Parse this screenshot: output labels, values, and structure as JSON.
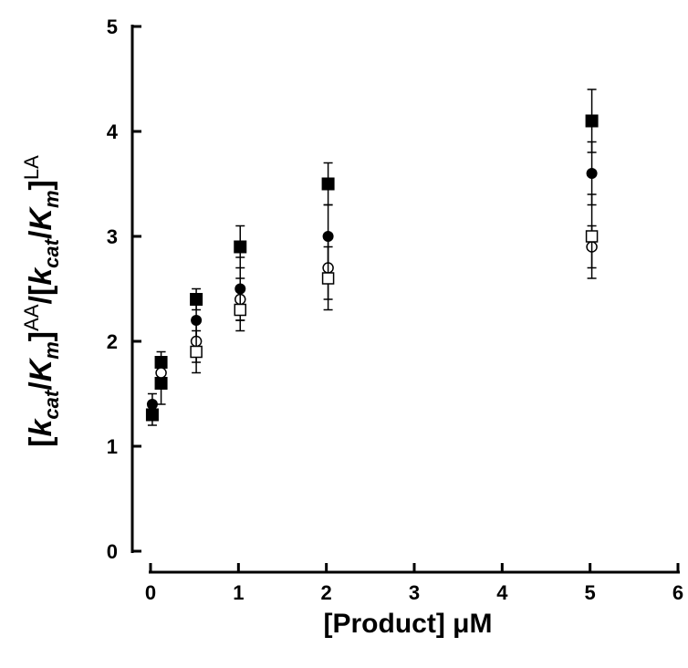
{
  "chart_data": {
    "type": "scatter",
    "title": "",
    "xlabel": "[Product] μM",
    "ylabel": {
      "open_bracket": "[",
      "k1": "k",
      "cat1": "cat",
      "slash1": "/",
      "K1": "K",
      "m1": "m",
      "close1": "]",
      "sup1": "AA",
      "slash_mid": "/[",
      "k2": "k",
      "cat2": "cat",
      "slash2": "/",
      "K2": "K",
      "m2": "m",
      "close2": "]",
      "sup2": "LA"
    },
    "xlim": [
      0,
      6
    ],
    "ylim": [
      0,
      5
    ],
    "x_ticks": [
      0,
      1,
      2,
      3,
      4,
      5,
      6
    ],
    "y_ticks": [
      0,
      1,
      2,
      3,
      4,
      5
    ],
    "grid": false,
    "legend": "none",
    "series": [
      {
        "marker": "filled-square",
        "points": [
          {
            "x": 0.02,
            "y": 1.3,
            "err": 0.1
          },
          {
            "x": 0.12,
            "y": 1.6,
            "err": 0.2
          },
          {
            "x": 0.12,
            "y": 1.8,
            "err": 0.1
          },
          {
            "x": 0.52,
            "y": 2.4,
            "err": 0.1
          },
          {
            "x": 1.02,
            "y": 2.9,
            "err": 0.2
          },
          {
            "x": 2.02,
            "y": 3.5,
            "err": 0.2
          },
          {
            "x": 5.02,
            "y": 4.1,
            "err": 0.3
          }
        ]
      },
      {
        "marker": "filled-circle",
        "points": [
          {
            "x": 0.02,
            "y": 1.4,
            "err": 0.1
          },
          {
            "x": 0.52,
            "y": 2.2,
            "err": 0.2
          },
          {
            "x": 1.02,
            "y": 2.5,
            "err": 0.3
          },
          {
            "x": 2.02,
            "y": 3.0,
            "err": 0.3
          },
          {
            "x": 5.02,
            "y": 3.6,
            "err": 0.3
          }
        ]
      },
      {
        "marker": "open-circle",
        "points": [
          {
            "x": 0.12,
            "y": 1.7,
            "err": 0.1
          },
          {
            "x": 0.52,
            "y": 2.0,
            "err": 0.2
          },
          {
            "x": 1.02,
            "y": 2.4,
            "err": 0.2
          },
          {
            "x": 2.02,
            "y": 2.7,
            "err": 0.3
          },
          {
            "x": 5.02,
            "y": 2.9,
            "err": 0.2
          }
        ]
      },
      {
        "marker": "open-square",
        "points": [
          {
            "x": 0.52,
            "y": 1.9,
            "err": 0.2
          },
          {
            "x": 1.02,
            "y": 2.3,
            "err": 0.2
          },
          {
            "x": 2.02,
            "y": 2.6,
            "err": 0.3
          },
          {
            "x": 5.02,
            "y": 3.0,
            "err": 0.4
          }
        ]
      }
    ],
    "colors": {
      "marker": "#000000",
      "axis": "#000000"
    }
  }
}
